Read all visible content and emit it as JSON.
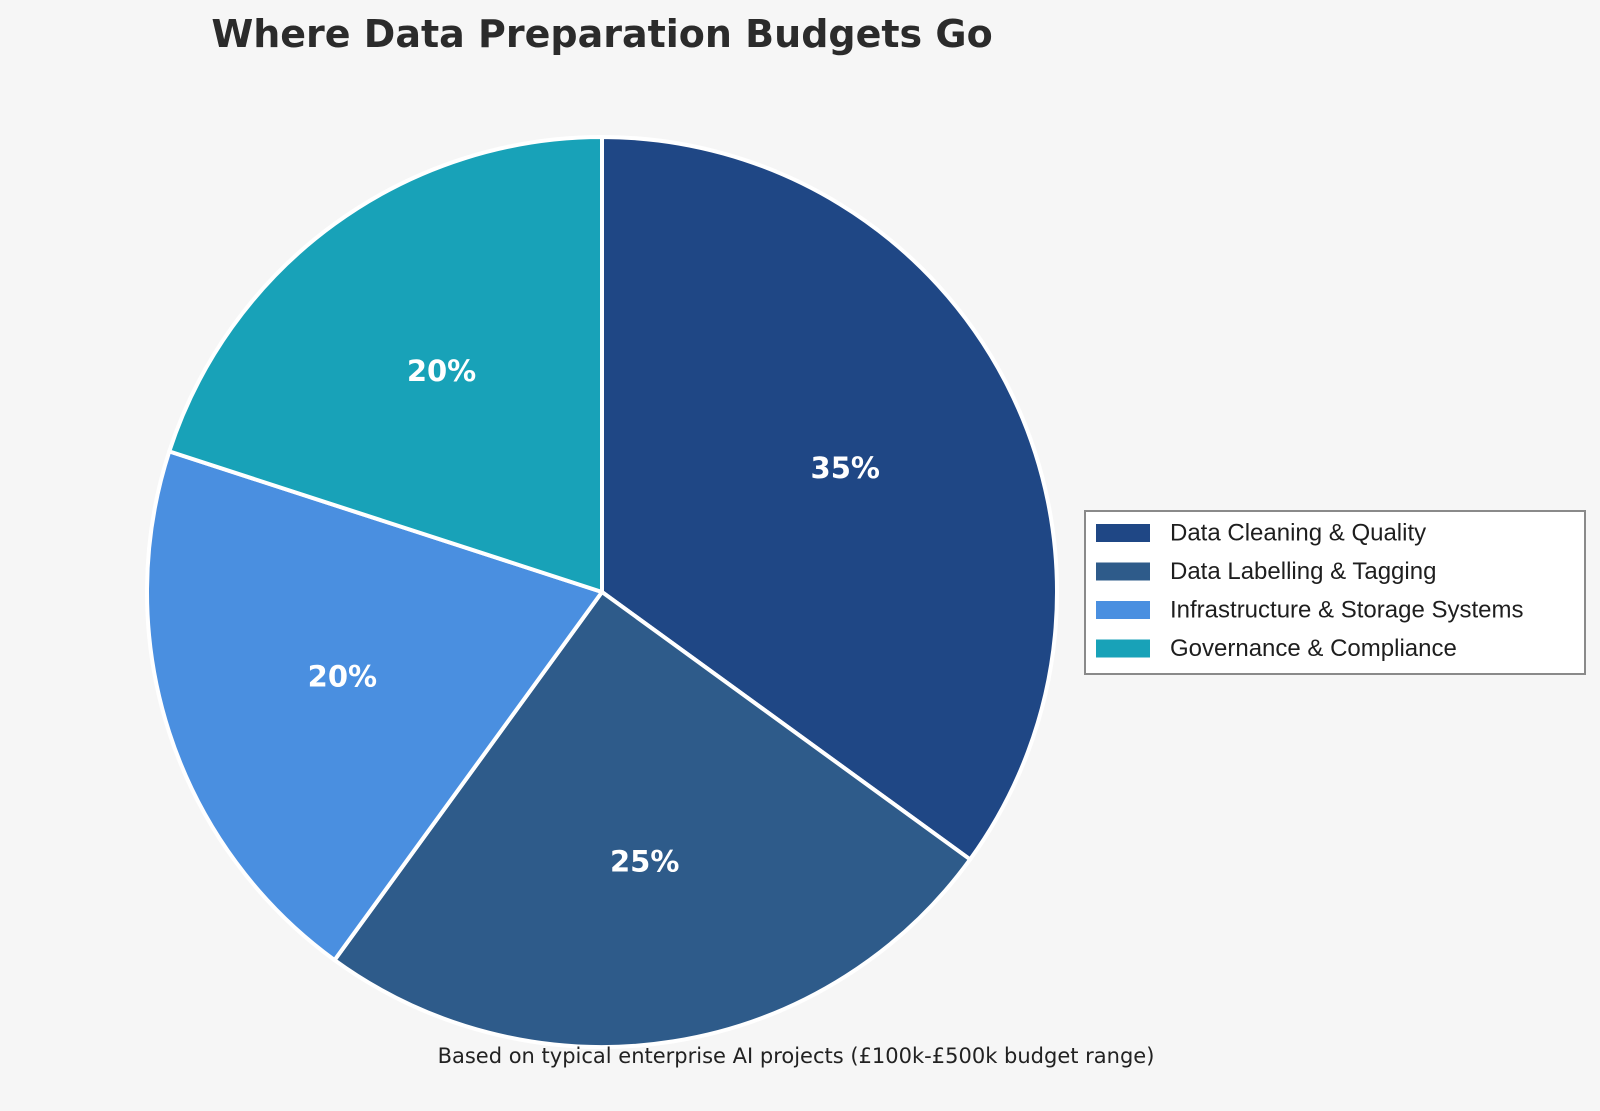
{
  "chart_data": {
    "type": "pie",
    "title": "Where Data Preparation Budgets Go",
    "categories": [
      "Data Cleaning & Quality",
      "Data Labelling & Tagging",
      "Infrastructure & Storage Systems",
      "Governance & Compliance"
    ],
    "values": [
      35,
      25,
      20,
      20
    ],
    "value_labels": [
      "35%",
      "25%",
      "20%",
      "20%"
    ],
    "colors": [
      "#1f4785",
      "#2e5b8a",
      "#4a8fe0",
      "#18a2b8"
    ],
    "start_angle": "12 o'clock",
    "direction": "clockwise",
    "legend_position": "right",
    "footnote": "Based on typical enterprise AI projects (£100k-£500k budget range)"
  }
}
